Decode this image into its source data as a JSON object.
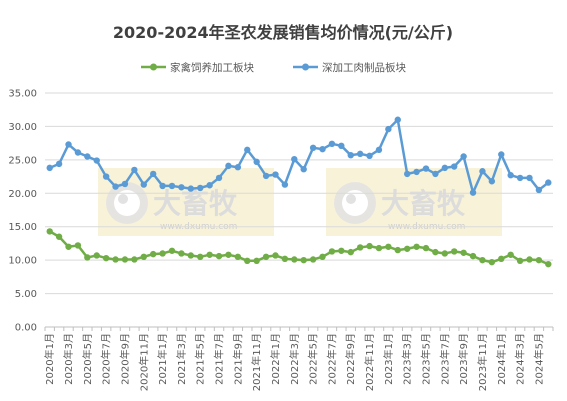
{
  "chart_data": {
    "type": "line",
    "title": "2020-2024年圣农发展销售均价情况(元/公斤)",
    "xlabel": "",
    "ylabel": "",
    "ylim": [
      0,
      35
    ],
    "yticks": [
      "0.00",
      "5.00",
      "10.00",
      "15.00",
      "20.00",
      "25.00",
      "30.00",
      "35.00"
    ],
    "grid": true,
    "legend_position": "top",
    "x": [
      "2020年1月",
      "2020年2月",
      "2020年3月",
      "2020年4月",
      "2020年5月",
      "2020年6月",
      "2020年7月",
      "2020年8月",
      "2020年9月",
      "2020年10月",
      "2020年11月",
      "2020年12月",
      "2021年1月",
      "2021年2月",
      "2021年3月",
      "2021年4月",
      "2021年5月",
      "2021年6月",
      "2021年7月",
      "2021年8月",
      "2021年9月",
      "2021年10月",
      "2021年11月",
      "2021年12月",
      "2022年1月",
      "2022年2月",
      "2022年3月",
      "2022年4月",
      "2022年5月",
      "2022年6月",
      "2022年7月",
      "2022年8月",
      "2022年9月",
      "2022年10月",
      "2022年11月",
      "2022年12月",
      "2023年1月",
      "2023年2月",
      "2023年3月",
      "2023年4月",
      "2023年5月",
      "2023年6月",
      "2023年7月",
      "2023年8月",
      "2023年9月",
      "2023年10月",
      "2023年11月",
      "2023年12月",
      "2024年1月",
      "2024年2月",
      "2024年3月",
      "2024年4月",
      "2024年5月",
      "2024年6月"
    ],
    "xtick_labels": [
      "2020年1月",
      "",
      "2020年3月",
      "",
      "2020年5月",
      "",
      "2020年7月",
      "",
      "2020年9月",
      "",
      "2020年11月",
      "",
      "2021年1月",
      "",
      "2021年3月",
      "",
      "2021年5月",
      "",
      "2021年7月",
      "",
      "2021年9月",
      "",
      "2021年11月",
      "",
      "2022年1月",
      "",
      "2022年3月",
      "",
      "2022年5月",
      "",
      "2022年7月",
      "",
      "2022年9月",
      "",
      "2022年11月",
      "",
      "2023年1月",
      "",
      "2023年3月",
      "",
      "2023年5月",
      "",
      "2023年7月",
      "",
      "2023年9月",
      "",
      "2023年11月",
      "",
      "2024年1月",
      "",
      "2024年3月",
      "",
      "2024年5月",
      ""
    ],
    "series": [
      {
        "name": "家禽饲养加工板块",
        "color": "#70ad47",
        "values": [
          14.3,
          13.5,
          12.0,
          12.2,
          10.4,
          10.7,
          10.3,
          10.1,
          10.1,
          10.1,
          10.5,
          10.9,
          11.0,
          11.4,
          11.0,
          10.7,
          10.5,
          10.8,
          10.6,
          10.8,
          10.5,
          9.9,
          9.9,
          10.5,
          10.7,
          10.2,
          10.1,
          10.0,
          10.1,
          10.5,
          11.3,
          11.4,
          11.2,
          11.9,
          12.1,
          11.8,
          12.0,
          11.5,
          11.7,
          12.0,
          11.8,
          11.2,
          11.0,
          11.3,
          11.1,
          10.6,
          10.0,
          9.7,
          10.2,
          10.8,
          9.9,
          10.1,
          10.0,
          9.4
        ]
      },
      {
        "name": "深加工肉制品板块",
        "color": "#5b9bd5",
        "values": [
          23.8,
          24.4,
          27.3,
          26.1,
          25.5,
          24.9,
          22.5,
          21.0,
          21.4,
          23.5,
          21.3,
          22.9,
          21.1,
          21.1,
          20.9,
          20.7,
          20.8,
          21.2,
          22.3,
          24.1,
          23.9,
          26.5,
          24.7,
          22.6,
          22.8,
          21.3,
          25.1,
          23.6,
          26.8,
          26.6,
          27.4,
          27.1,
          25.7,
          25.9,
          25.6,
          26.5,
          29.6,
          31.0,
          22.9,
          23.2,
          23.7,
          22.9,
          23.8,
          24.0,
          25.5,
          20.1,
          23.3,
          21.8,
          25.8,
          22.7,
          22.3,
          22.3,
          20.5,
          21.6
        ]
      }
    ]
  },
  "watermarks": [
    {
      "brand": "大畜牧",
      "url": "www.dxumu.com",
      "icon": "watermark-logo-icon"
    },
    {
      "brand": "大畜牧",
      "url": "www.dxumu.com",
      "icon": "watermark-logo-icon"
    }
  ]
}
